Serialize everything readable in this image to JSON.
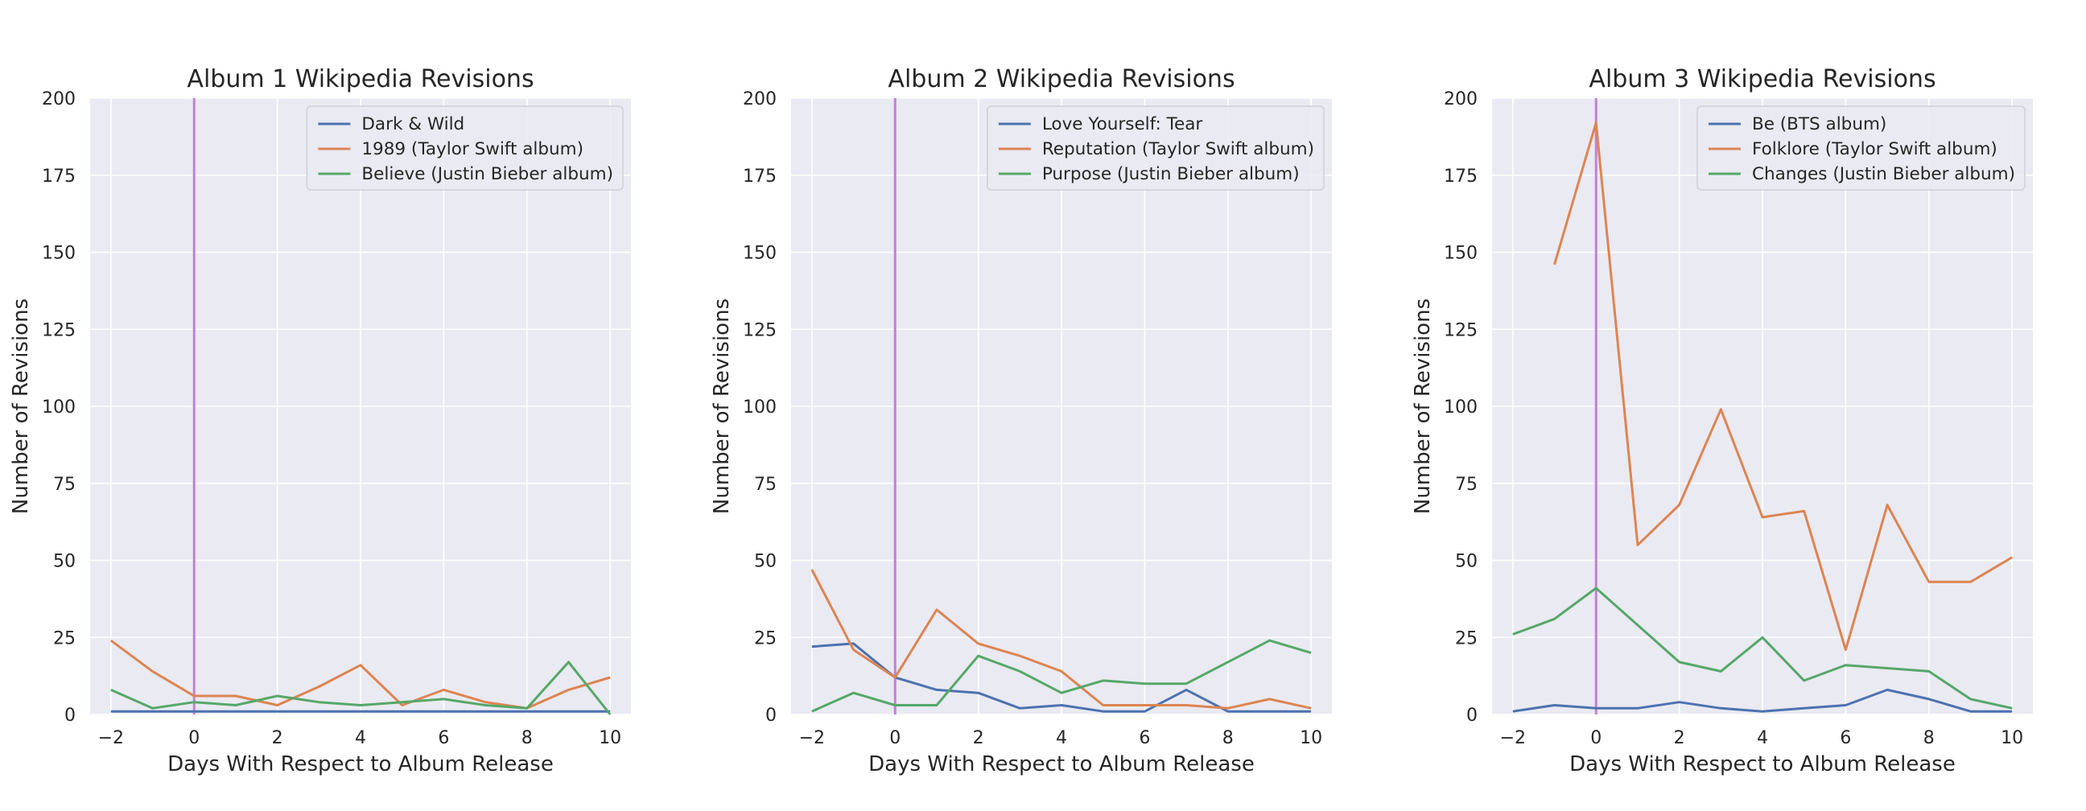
{
  "chart_data": [
    {
      "type": "line",
      "title": "Album 1 Wikipedia Revisions",
      "xlabel": "Days With Respect to Album Release",
      "ylabel": "Number of Revisions",
      "xlim": [
        -2.5,
        10.5
      ],
      "ylim": [
        0,
        200
      ],
      "xticks": [
        -2,
        0,
        2,
        4,
        6,
        8,
        10
      ],
      "xtick_labels": [
        "−2",
        "0",
        "2",
        "4",
        "6",
        "8",
        "10"
      ],
      "yticks": [
        0,
        25,
        50,
        75,
        100,
        125,
        150,
        175,
        200
      ],
      "ytick_labels": [
        "0",
        "25",
        "50",
        "75",
        "100",
        "125",
        "150",
        "175",
        "200"
      ],
      "vline_x": 0,
      "grid": true,
      "legend_position": "top-right",
      "x": [
        -2,
        -1,
        0,
        1,
        2,
        3,
        4,
        5,
        6,
        7,
        8,
        9,
        10
      ],
      "series": [
        {
          "name": "Dark & Wild",
          "color": "#4c72b0",
          "values": [
            1,
            1,
            1,
            1,
            1,
            1,
            1,
            1,
            1,
            1,
            1,
            1,
            1
          ]
        },
        {
          "name": "1989 (Taylor Swift album)",
          "color": "#dd8452",
          "values": [
            24,
            14,
            6,
            6,
            3,
            9,
            16,
            3,
            8,
            4,
            2,
            8,
            12
          ]
        },
        {
          "name": "Believe (Justin Bieber album)",
          "color": "#55a868",
          "values": [
            8,
            2,
            4,
            3,
            6,
            4,
            3,
            4,
            5,
            3,
            2,
            17,
            0
          ]
        }
      ]
    },
    {
      "type": "line",
      "title": "Album 2 Wikipedia Revisions",
      "xlabel": "Days With Respect to Album Release",
      "ylabel": "Number of Revisions",
      "xlim": [
        -2.5,
        10.5
      ],
      "ylim": [
        0,
        200
      ],
      "xticks": [
        -2,
        0,
        2,
        4,
        6,
        8,
        10
      ],
      "xtick_labels": [
        "−2",
        "0",
        "2",
        "4",
        "6",
        "8",
        "10"
      ],
      "yticks": [
        0,
        25,
        50,
        75,
        100,
        125,
        150,
        175,
        200
      ],
      "ytick_labels": [
        "0",
        "25",
        "50",
        "75",
        "100",
        "125",
        "150",
        "175",
        "200"
      ],
      "vline_x": 0,
      "grid": true,
      "legend_position": "top-right",
      "x": [
        -2,
        -1,
        0,
        1,
        2,
        3,
        4,
        5,
        6,
        7,
        8,
        9,
        10
      ],
      "series": [
        {
          "name": "Love Yourself: Tear",
          "color": "#4c72b0",
          "values": [
            22,
            23,
            12,
            8,
            7,
            2,
            3,
            1,
            1,
            8,
            1,
            1,
            1
          ]
        },
        {
          "name": "Reputation (Taylor Swift album)",
          "color": "#dd8452",
          "values": [
            47,
            21,
            12,
            34,
            23,
            19,
            14,
            3,
            3,
            3,
            2,
            5,
            2
          ]
        },
        {
          "name": "Purpose (Justin Bieber album)",
          "color": "#55a868",
          "values": [
            1,
            7,
            3,
            3,
            19,
            14,
            7,
            11,
            10,
            10,
            17,
            24,
            20
          ]
        }
      ]
    },
    {
      "type": "line",
      "title": "Album 3 Wikipedia Revisions",
      "xlabel": "Days With Respect to Album Release",
      "ylabel": "Number of Revisions",
      "xlim": [
        -2.5,
        10.5
      ],
      "ylim": [
        0,
        200
      ],
      "xticks": [
        -2,
        0,
        2,
        4,
        6,
        8,
        10
      ],
      "xtick_labels": [
        "−2",
        "0",
        "2",
        "4",
        "6",
        "8",
        "10"
      ],
      "yticks": [
        0,
        25,
        50,
        75,
        100,
        125,
        150,
        175,
        200
      ],
      "ytick_labels": [
        "0",
        "25",
        "50",
        "75",
        "100",
        "125",
        "150",
        "175",
        "200"
      ],
      "vline_x": 0,
      "grid": true,
      "legend_position": "top-right",
      "x": [
        -2,
        -1,
        0,
        1,
        2,
        3,
        4,
        5,
        6,
        7,
        8,
        9,
        10
      ],
      "series": [
        {
          "name": "Be (BTS album)",
          "color": "#4c72b0",
          "values": [
            1,
            3,
            2,
            2,
            4,
            2,
            1,
            2,
            3,
            8,
            5,
            1,
            1
          ]
        },
        {
          "name": "Folklore (Taylor Swift album)",
          "color": "#dd8452",
          "values": [
            null,
            146,
            192,
            55,
            68,
            99,
            64,
            66,
            21,
            68,
            43,
            43,
            51
          ]
        },
        {
          "name": "Changes (Justin Bieber album)",
          "color": "#55a868",
          "values": [
            26,
            31,
            41,
            29,
            17,
            14,
            25,
            11,
            16,
            15,
            14,
            5,
            2
          ]
        }
      ]
    }
  ],
  "style": {
    "axes_bg": "#eaeaf2",
    "grid_color": "#ffffff",
    "vline_color": "#c27fd6",
    "text_color": "#262626"
  }
}
